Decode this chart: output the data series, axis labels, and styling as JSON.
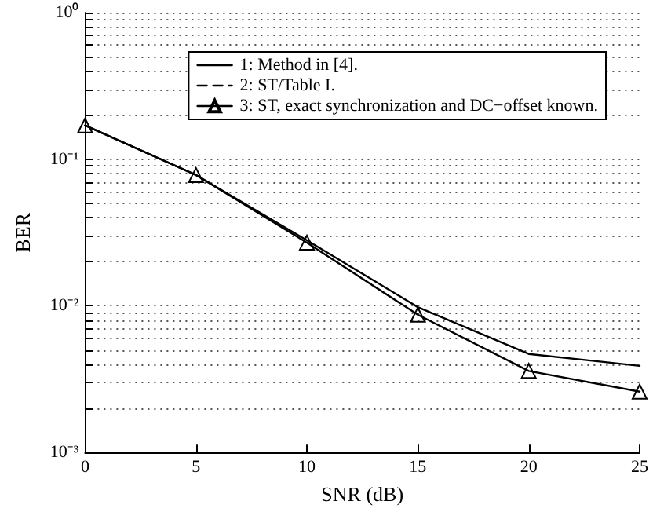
{
  "chart_data": {
    "type": "line",
    "xlabel": "SNR (dB)",
    "ylabel": "BER",
    "log": "y",
    "x": [
      0,
      5,
      10,
      15,
      20,
      25
    ],
    "series": [
      {
        "name": "1: Method in [4].",
        "color": "#000000",
        "line_style": "solid",
        "marker": "none",
        "values": [
          0.17,
          0.078,
          0.028,
          0.0098,
          0.0047,
          0.0039
        ]
      },
      {
        "name": "2: ST/Table I.",
        "color": "#000000",
        "line_style": "dashed",
        "marker": "none",
        "values": [
          null,
          null,
          null,
          null,
          null,
          null
        ]
      },
      {
        "name": "3: ST, exact synchronization and DC−offset known.",
        "color": "#000000",
        "line_style": "solid",
        "marker": "triangle",
        "values": [
          0.17,
          0.078,
          0.027,
          0.0087,
          0.0036,
          0.0026
        ]
      }
    ],
    "xlim": [
      0,
      25
    ],
    "xticks": [
      0,
      5,
      10,
      15,
      20,
      25
    ],
    "ylim": [
      0.001,
      1
    ],
    "yticks": [
      {
        "value": 0.001,
        "label": "10⁻³"
      },
      {
        "value": 0.002,
        "label": null
      },
      {
        "value": 0.003,
        "label": null
      },
      {
        "value": 0.004,
        "label": null
      },
      {
        "value": 0.005,
        "label": null
      },
      {
        "value": 0.006,
        "label": null
      },
      {
        "value": 0.007,
        "label": null
      },
      {
        "value": 0.008,
        "label": null
      },
      {
        "value": 0.009,
        "label": null
      },
      {
        "value": 0.01,
        "label": "10⁻²"
      },
      {
        "value": 0.02,
        "label": null
      },
      {
        "value": 0.03,
        "label": null
      },
      {
        "value": 0.04,
        "label": null
      },
      {
        "value": 0.05,
        "label": null
      },
      {
        "value": 0.06,
        "label": null
      },
      {
        "value": 0.07,
        "label": null
      },
      {
        "value": 0.08,
        "label": null
      },
      {
        "value": 0.09,
        "label": null
      },
      {
        "value": 0.1,
        "label": "10⁻¹"
      },
      {
        "value": 0.2,
        "label": null
      },
      {
        "value": 0.3,
        "label": null
      },
      {
        "value": 0.4,
        "label": null
      },
      {
        "value": 0.5,
        "label": null
      },
      {
        "value": 0.6,
        "label": null
      },
      {
        "value": 0.7,
        "label": null
      },
      {
        "value": 0.8,
        "label": null
      },
      {
        "value": 0.9,
        "label": null
      },
      {
        "value": 1,
        "label": "10⁰"
      }
    ],
    "grid": "y",
    "legend": "top right"
  }
}
